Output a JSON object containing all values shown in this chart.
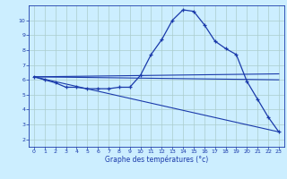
{
  "xlabel": "Graphe des températures (°c)",
  "bg_color": "#cceeff",
  "grid_color": "#aacccc",
  "line_color": "#1a3aaa",
  "xlim": [
    -0.5,
    23.5
  ],
  "ylim": [
    1.5,
    11.0
  ],
  "yticks": [
    2,
    3,
    4,
    5,
    6,
    7,
    8,
    9,
    10
  ],
  "xticks": [
    0,
    1,
    2,
    3,
    4,
    5,
    6,
    7,
    8,
    9,
    10,
    11,
    12,
    13,
    14,
    15,
    16,
    17,
    18,
    19,
    20,
    21,
    22,
    23
  ],
  "line1_x": [
    0,
    1,
    2,
    3,
    4,
    5,
    6,
    7,
    8,
    9,
    10,
    11,
    12,
    13,
    14,
    15,
    16,
    17,
    18,
    19,
    20,
    21,
    22,
    23
  ],
  "line1_y": [
    6.2,
    6.0,
    5.8,
    5.5,
    5.5,
    5.4,
    5.4,
    5.4,
    5.5,
    5.5,
    6.3,
    7.7,
    8.7,
    10.0,
    10.7,
    10.6,
    9.7,
    8.6,
    8.1,
    7.7,
    5.9,
    4.7,
    3.5,
    2.5
  ],
  "line2_x": [
    0,
    23
  ],
  "line2_y": [
    6.2,
    6.4
  ],
  "line3_x": [
    0,
    23
  ],
  "line3_y": [
    6.2,
    6.0
  ],
  "line4_x": [
    0,
    23
  ],
  "line4_y": [
    6.2,
    2.5
  ]
}
